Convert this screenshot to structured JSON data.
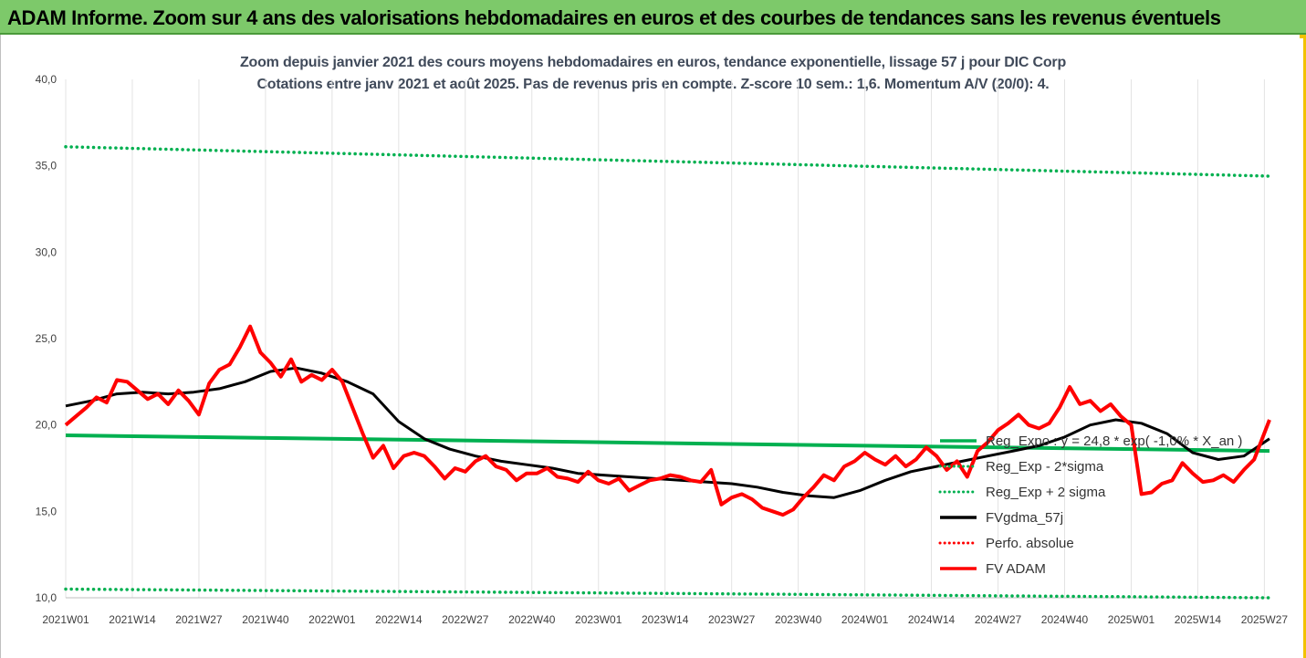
{
  "banner": {
    "title": "ADAM Informe. Zoom sur 4 ans des valorisations hebdomadaires en euros et des courbes de tendances sans les revenus éventuels"
  },
  "chart_data": {
    "type": "line",
    "title": "Zoom depuis janvier 2021 des cours moyens hebdomadaires en euros, tendance exponentielle, lissage 57 j pour DIC Corp",
    "subtitle": "Cotations entre janv 2021 et août 2025.  Pas de revenus pris en compte. Z-score 10 sem.: 1,6. Momentum A/V (20/0): 4.",
    "ylim": [
      10,
      40
    ],
    "yticks": [
      "10,0",
      "15,0",
      "20,0",
      "25,0",
      "30,0",
      "35,0",
      "40,0"
    ],
    "xticks": [
      "2021W01",
      "2021W14",
      "2021W27",
      "2021W40",
      "2022W01",
      "2022W14",
      "2022W27",
      "2022W40",
      "2023W01",
      "2023W14",
      "2023W27",
      "2023W40",
      "2024W01",
      "2024W14",
      "2024W27",
      "2024W40",
      "2025W01",
      "2025W14",
      "2025W27"
    ],
    "grid": "vertical",
    "legend_position": "right",
    "legend": [
      {
        "label": "Reg_Expo : y = 24,8 * exp( -1,0% *  X_an )",
        "color": "#00b050",
        "style": "solid"
      },
      {
        "label": "Reg_Exp - 2*sigma",
        "color": "#00b050",
        "style": "dotted"
      },
      {
        "label": "Reg_Exp + 2 sigma",
        "color": "#00b050",
        "style": "dotted"
      },
      {
        "label": "FVgdma_57j",
        "color": "#000000",
        "style": "solid"
      },
      {
        "label": "Perfo. absolue",
        "color": "#ff0000",
        "style": "dotted"
      },
      {
        "label": "FV ADAM",
        "color": "#ff0000",
        "style": "solid"
      }
    ],
    "series": [
      {
        "name": "Reg_Expo : y = 24,8 * exp( -1,0% *  X_an )",
        "color": "#00b050",
        "x_week_index": [
          0,
          235
        ],
        "values": [
          19.4,
          18.5
        ]
      },
      {
        "name": "Reg_Exp - 2*sigma",
        "color": "#00b050",
        "x_week_index": [
          0,
          235
        ],
        "values": [
          10.5,
          10.0
        ]
      },
      {
        "name": "Reg_Exp + 2 sigma",
        "color": "#00b050",
        "x_week_index": [
          0,
          235
        ],
        "values": [
          36.1,
          34.4
        ]
      },
      {
        "name": "FVgdma_57j",
        "color": "#000000",
        "x_week_index": [
          0,
          5,
          10,
          15,
          20,
          25,
          30,
          35,
          40,
          45,
          50,
          55,
          60,
          65,
          70,
          75,
          80,
          85,
          90,
          95,
          100,
          105,
          110,
          115,
          120,
          125,
          130,
          135,
          140,
          145,
          150,
          155,
          160,
          165,
          170,
          175,
          180,
          185,
          190,
          195,
          200,
          205,
          210,
          215,
          220,
          225,
          230,
          235
        ],
        "values": [
          21.1,
          21.4,
          21.8,
          21.9,
          21.8,
          21.9,
          22.1,
          22.5,
          23.1,
          23.3,
          23.0,
          22.5,
          21.8,
          20.2,
          19.2,
          18.6,
          18.2,
          17.9,
          17.7,
          17.5,
          17.2,
          17.1,
          17.0,
          16.9,
          16.8,
          16.7,
          16.6,
          16.4,
          16.1,
          15.9,
          15.8,
          16.2,
          16.8,
          17.3,
          17.6,
          17.9,
          18.2,
          18.5,
          18.8,
          19.3,
          20.0,
          20.3,
          20.1,
          19.5,
          18.4,
          18.0,
          18.2,
          19.2
        ]
      },
      {
        "name": "FV ADAM",
        "color": "#ff0000",
        "x_week_index": [
          0,
          2,
          4,
          6,
          8,
          10,
          12,
          14,
          16,
          18,
          20,
          22,
          24,
          26,
          28,
          30,
          32,
          34,
          36,
          38,
          40,
          42,
          44,
          46,
          48,
          50,
          52,
          54,
          56,
          58,
          60,
          62,
          64,
          66,
          68,
          70,
          72,
          74,
          76,
          78,
          80,
          82,
          84,
          86,
          88,
          90,
          92,
          94,
          96,
          98,
          100,
          102,
          104,
          106,
          108,
          110,
          112,
          114,
          116,
          118,
          120,
          122,
          124,
          126,
          128,
          130,
          132,
          134,
          136,
          138,
          140,
          142,
          144,
          146,
          148,
          150,
          152,
          154,
          156,
          158,
          160,
          162,
          164,
          166,
          168,
          170,
          172,
          174,
          176,
          178,
          180,
          182,
          184,
          186,
          188,
          190,
          192,
          194,
          196,
          198,
          200,
          202,
          204,
          206,
          208,
          210,
          212,
          214,
          216,
          218,
          220,
          222,
          224,
          226,
          228,
          230,
          232,
          235
        ],
        "values": [
          20.0,
          20.5,
          21.0,
          21.6,
          21.3,
          22.6,
          22.5,
          22.0,
          21.5,
          21.8,
          21.2,
          22.0,
          21.4,
          20.6,
          22.4,
          23.2,
          23.5,
          24.5,
          25.7,
          24.2,
          23.6,
          22.8,
          23.8,
          22.5,
          22.9,
          22.6,
          23.2,
          22.5,
          21.0,
          19.5,
          18.1,
          18.8,
          17.5,
          18.2,
          18.4,
          18.2,
          17.6,
          16.9,
          17.5,
          17.3,
          17.9,
          18.2,
          17.6,
          17.4,
          16.8,
          17.2,
          17.2,
          17.5,
          17.0,
          16.9,
          16.7,
          17.3,
          16.8,
          16.6,
          16.9,
          16.2,
          16.5,
          16.8,
          16.9,
          17.1,
          17.0,
          16.8,
          16.7,
          17.4,
          15.4,
          15.8,
          16.0,
          15.7,
          15.2,
          15.0,
          14.8,
          15.1,
          15.8,
          16.4,
          17.1,
          16.8,
          17.6,
          17.9,
          18.4,
          18.0,
          17.7,
          18.2,
          17.6,
          18.0,
          18.7,
          18.2,
          17.4,
          17.9,
          17.0,
          18.5,
          19.0,
          19.7,
          20.1,
          20.6,
          20.0,
          19.8,
          20.1,
          21.0,
          22.2,
          21.2,
          21.4,
          20.8,
          21.2,
          20.5,
          20.0,
          16.0,
          16.1,
          16.6,
          16.8,
          17.8,
          17.2,
          16.7,
          16.8,
          17.1,
          16.7,
          17.4,
          18.0,
          20.3
        ]
      }
    ]
  }
}
